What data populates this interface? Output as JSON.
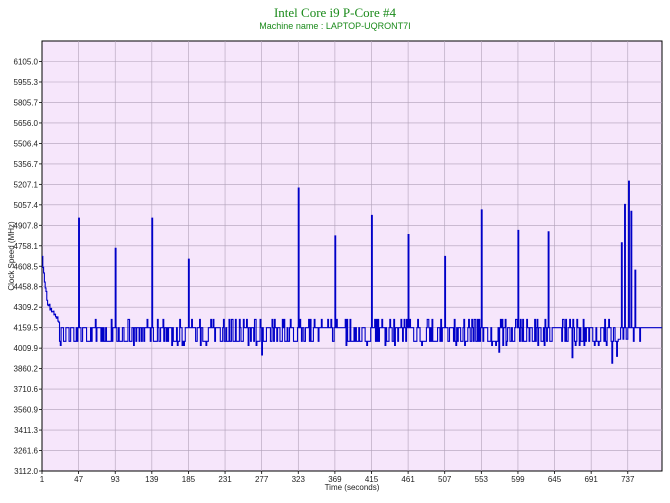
{
  "chart_data": {
    "type": "line",
    "title": "Intel Core i9 P-Core #4",
    "subtitle": "Machine name : LAPTOP-UQRONT7I",
    "xlabel": "Time (seconds)",
    "ylabel": "Clock Speed (MHz)",
    "xlim": [
      1,
      780
    ],
    "ylim": [
      3112.0,
      6254.9
    ],
    "x_ticks": [
      1,
      47,
      93,
      139,
      185,
      231,
      277,
      323,
      369,
      415,
      461,
      507,
      553,
      599,
      645,
      691,
      737
    ],
    "y_ticks": [
      3112.0,
      3261.6,
      3411.3,
      3560.9,
      3710.6,
      3860.2,
      4009.9,
      4159.5,
      4309.2,
      4458.8,
      4608.5,
      4758.1,
      4907.8,
      5057.4,
      5207.1,
      5356.7,
      5506.4,
      5656.0,
      5805.7,
      5955.3,
      6105.0
    ],
    "grid": true,
    "colors": {
      "plot_background": "#f6e6fb",
      "grid": "#b0a0b8",
      "line": "#0000c8",
      "title": "#1a8a1a"
    },
    "series": [
      {
        "values_description": "clock speed sampled each second",
        "baseline_high": 4159.5,
        "baseline_low": 4059.8,
        "start_profile": [
          [
            1,
            4680
          ],
          [
            3,
            4560
          ],
          [
            5,
            4450
          ],
          [
            7,
            4360
          ],
          [
            9,
            4320
          ],
          [
            12,
            4300
          ],
          [
            15,
            4280
          ],
          [
            18,
            4240
          ],
          [
            22,
            4200
          ]
        ],
        "spikes": [
          [
            47,
            4960
          ],
          [
            93,
            4740
          ],
          [
            139,
            4960
          ],
          [
            185,
            4660
          ],
          [
            323,
            5180
          ],
          [
            369,
            4830
          ],
          [
            415,
            4980
          ],
          [
            461,
            4840
          ],
          [
            507,
            4680
          ],
          [
            553,
            5020
          ],
          [
            599,
            4870
          ],
          [
            637,
            4860
          ],
          [
            729,
            4780
          ],
          [
            733,
            5060
          ],
          [
            738,
            5230
          ],
          [
            741,
            5010
          ],
          [
            746,
            4580
          ]
        ],
        "dips": [
          [
            277,
            3960
          ],
          [
            369,
            3960
          ],
          [
            575,
            3980
          ],
          [
            600,
            3960
          ],
          [
            667,
            3940
          ],
          [
            717,
            3900
          ],
          [
            723,
            3950
          ]
        ],
        "flat_segments": [
          [
            725,
            740,
            4075
          ],
          [
            755,
            780,
            4159.5
          ]
        ]
      }
    ]
  }
}
